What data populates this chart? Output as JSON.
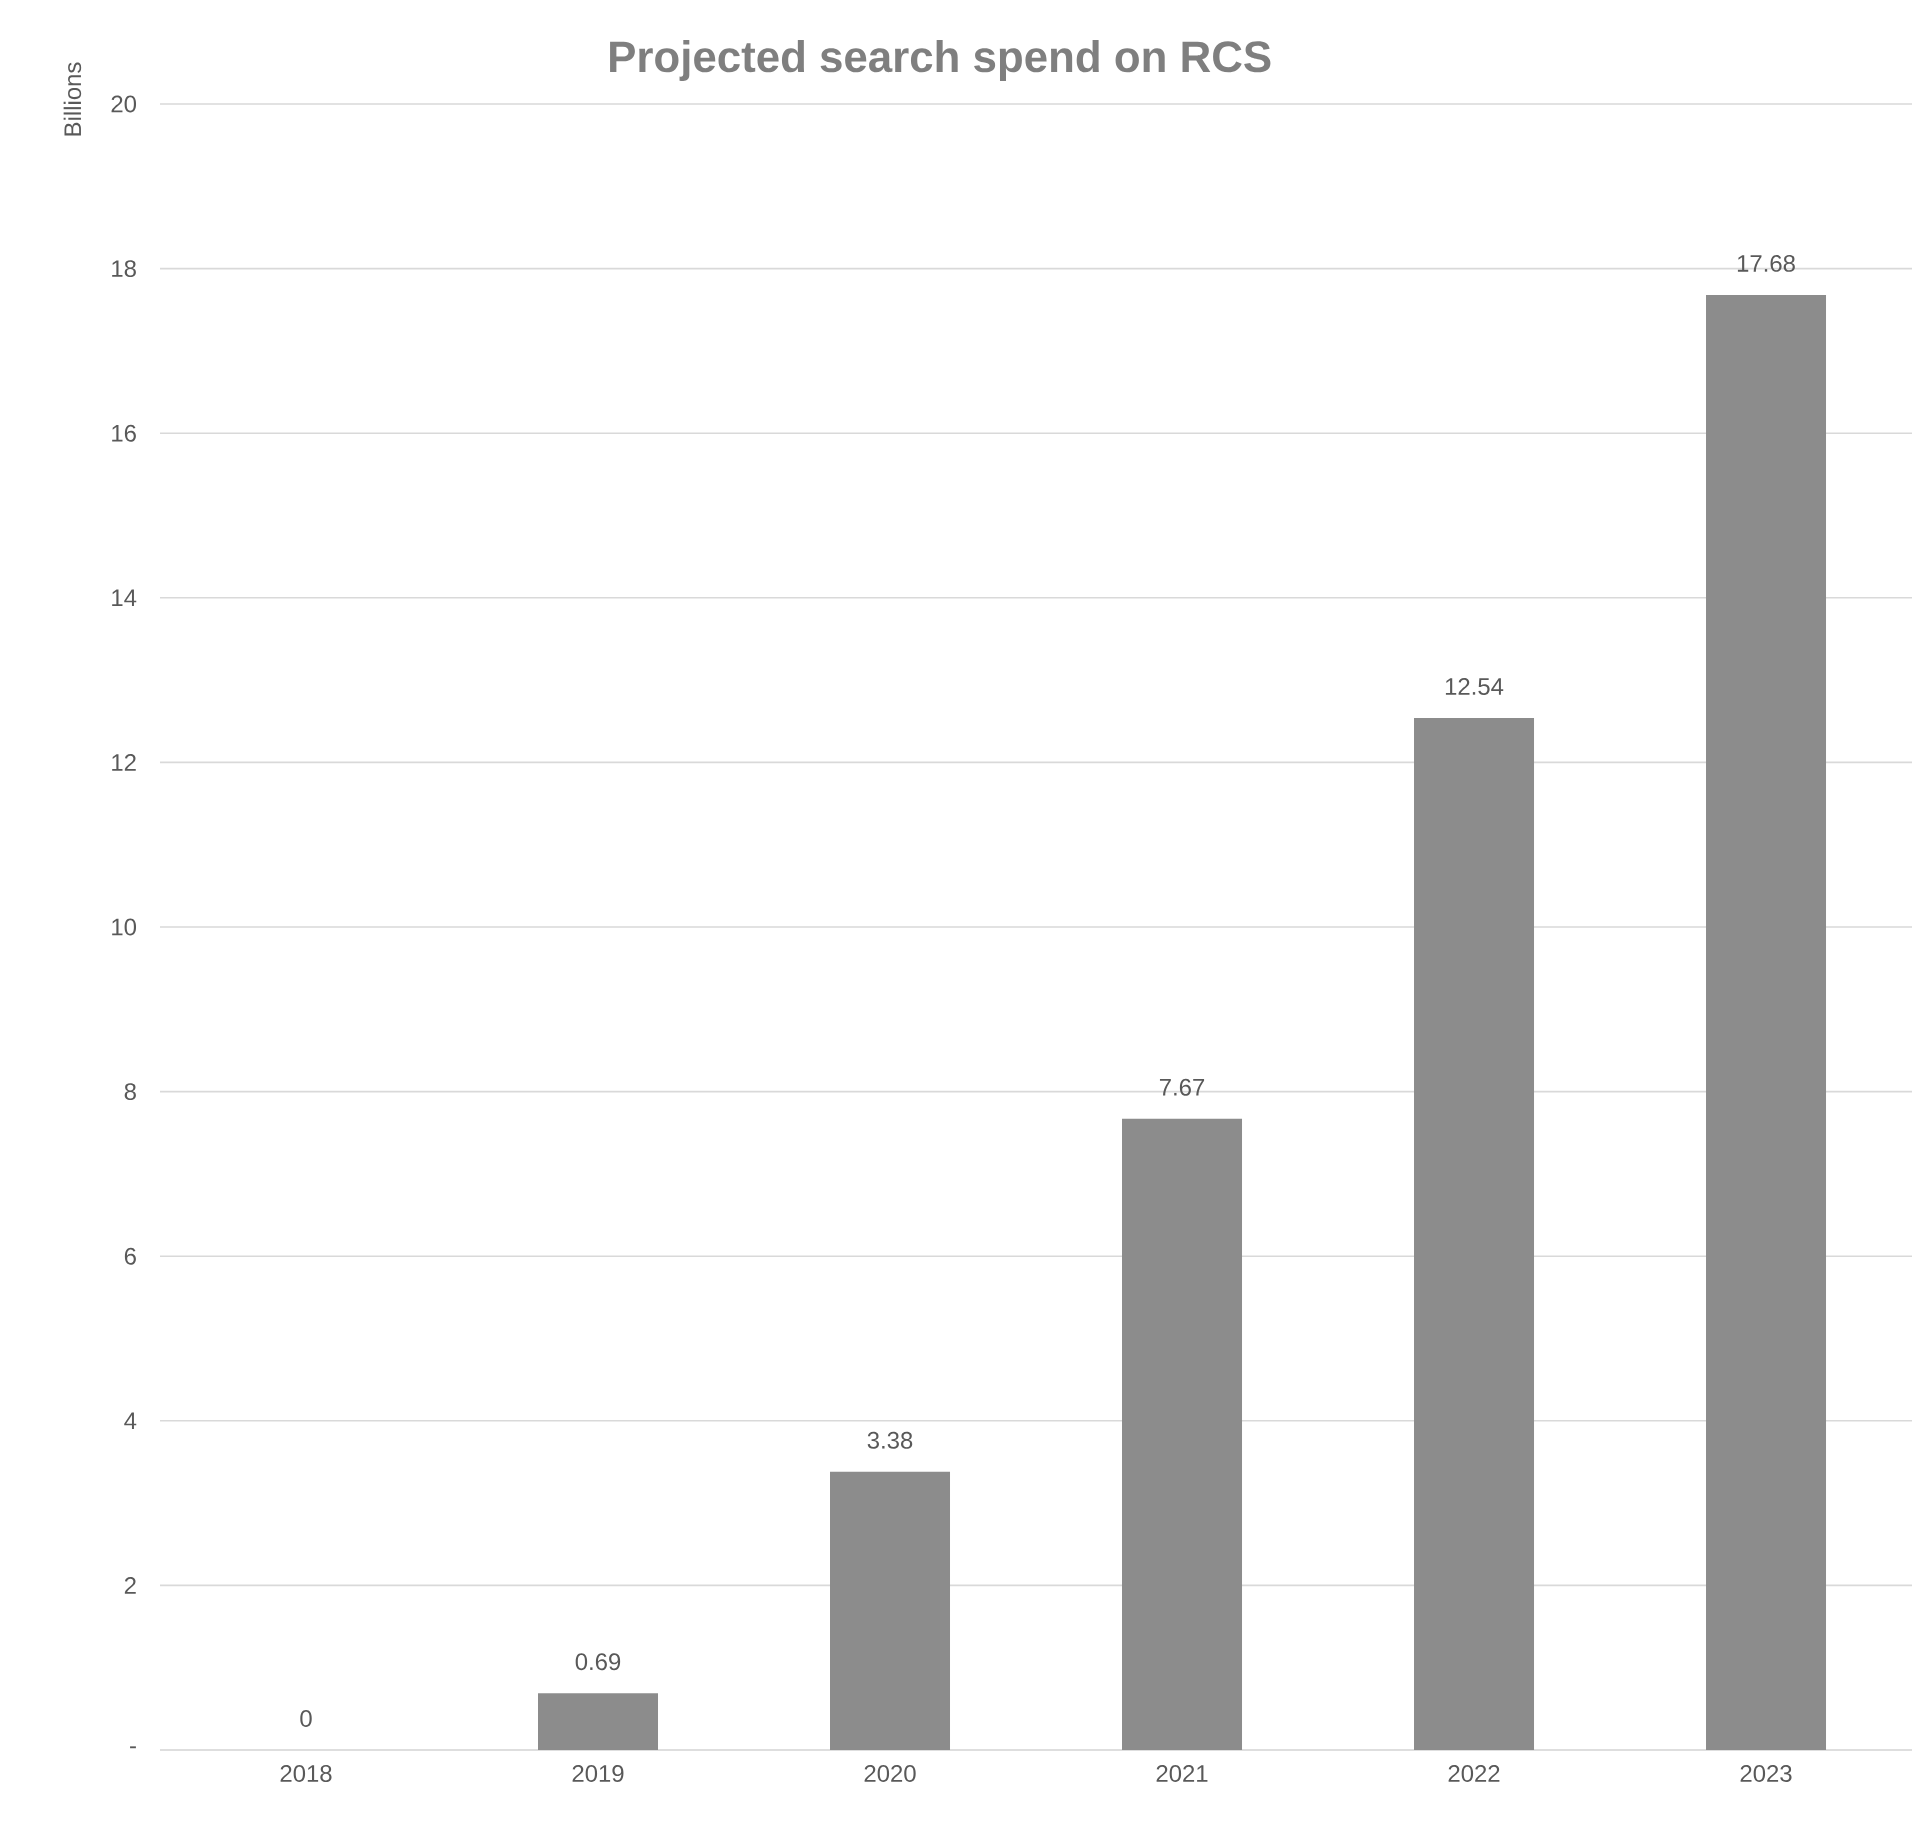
{
  "chart_data": {
    "type": "bar",
    "title": "Projected search spend on RCS",
    "ylabel": "Billions",
    "categories": [
      "2018",
      "2019",
      "2020",
      "2021",
      "2022",
      "2023"
    ],
    "values": [
      0,
      0.69,
      3.38,
      7.67,
      12.54,
      17.68
    ],
    "color": "#8c8c8c",
    "ylim": [
      0,
      20
    ],
    "yticks": [
      {
        "value": 0,
        "label": "-"
      },
      2,
      4,
      6,
      8,
      10,
      12,
      14,
      16,
      18,
      20
    ],
    "grid": "y",
    "data_labels": true
  }
}
